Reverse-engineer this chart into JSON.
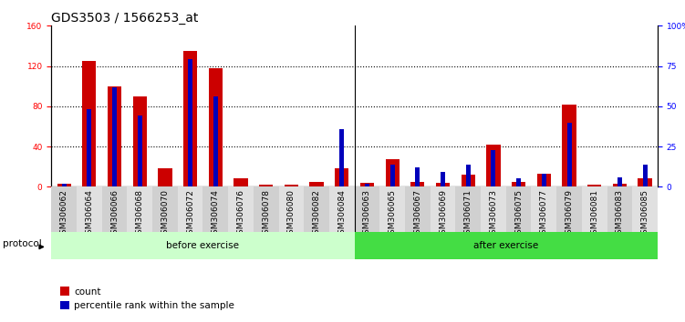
{
  "title": "GDS3503 / 1566253_at",
  "categories": [
    "GSM306062",
    "GSM306064",
    "GSM306066",
    "GSM306068",
    "GSM306070",
    "GSM306072",
    "GSM306074",
    "GSM306076",
    "GSM306078",
    "GSM306080",
    "GSM306082",
    "GSM306084",
    "GSM306063",
    "GSM306065",
    "GSM306067",
    "GSM306069",
    "GSM306071",
    "GSM306073",
    "GSM306075",
    "GSM306077",
    "GSM306079",
    "GSM306081",
    "GSM306083",
    "GSM306085"
  ],
  "count_values": [
    3,
    125,
    100,
    90,
    18,
    135,
    118,
    8,
    2,
    2,
    5,
    18,
    4,
    27,
    5,
    4,
    12,
    42,
    5,
    13,
    82,
    2,
    3,
    8
  ],
  "percentile_values": [
    2,
    48,
    62,
    44,
    0,
    79,
    56,
    0,
    0,
    0,
    0,
    36,
    2,
    14,
    12,
    9,
    14,
    23,
    5,
    8,
    40,
    0,
    6,
    14
  ],
  "before_exercise_count": 12,
  "after_exercise_count": 12,
  "bar_color_red": "#cc0000",
  "bar_color_blue": "#0000bb",
  "before_bg": "#ccffcc",
  "after_bg": "#44dd44",
  "protocol_label": "protocol",
  "before_label": "before exercise",
  "after_label": "after exercise",
  "legend_count": "count",
  "legend_percentile": "percentile rank within the sample",
  "ylim_left": [
    0,
    160
  ],
  "ylim_right": [
    0,
    100
  ],
  "yticks_left": [
    0,
    40,
    80,
    120,
    160
  ],
  "yticks_right": [
    0,
    25,
    50,
    75,
    100
  ],
  "ytick_labels_right": [
    "0",
    "25",
    "50",
    "75",
    "100%"
  ],
  "ax_bg": "#ffffff",
  "title_fontsize": 10,
  "tick_fontsize": 6.5,
  "label_fontsize": 7.5
}
